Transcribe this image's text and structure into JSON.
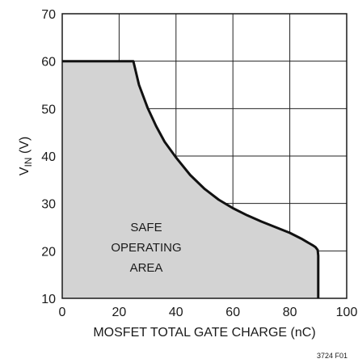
{
  "chart_data": {
    "type": "area",
    "title": "",
    "xlabel": "MOSFET TOTAL GATE CHARGE (nC)",
    "ylabel": {
      "main": "V",
      "sub": "IN",
      "unit": " (V)"
    },
    "xlim": [
      0,
      100
    ],
    "ylim": [
      10,
      70
    ],
    "x_ticks": [
      "0",
      "20",
      "40",
      "60",
      "80",
      "100"
    ],
    "y_ticks": [
      "10",
      "20",
      "30",
      "40",
      "50",
      "60",
      "70"
    ],
    "grid": true,
    "boundary": {
      "x": [
        0,
        25,
        27,
        30,
        33,
        36,
        40,
        45,
        50,
        55,
        60,
        65,
        70,
        75,
        80,
        84,
        86,
        88,
        89,
        89.8,
        90,
        90
      ],
      "y": [
        60,
        60,
        55,
        50.2,
        46.3,
        43,
        39.7,
        36,
        33.1,
        30.8,
        29,
        27.5,
        26.2,
        25,
        23.8,
        22.6,
        21.9,
        21.2,
        20.8,
        20.2,
        19,
        10
      ]
    },
    "annotations": {
      "region_lines": [
        "SAFE",
        "OPERATING",
        "AREA"
      ]
    }
  },
  "figure_id": "3724 F01"
}
